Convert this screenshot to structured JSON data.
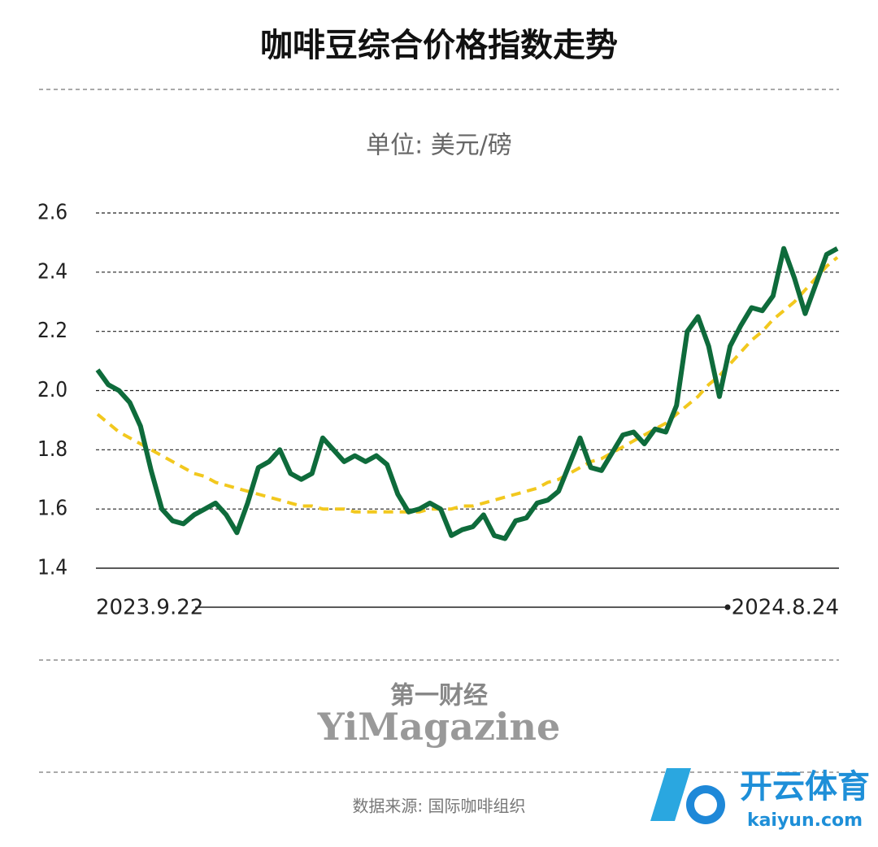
{
  "chart_data": {
    "type": "line",
    "title": "咖啡豆综合价格指数走势",
    "subtitle": "单位: 美元/磅",
    "categories": [
      "2023.9.22",
      null,
      null,
      null,
      null,
      null,
      null,
      null,
      null,
      null,
      null,
      null,
      null,
      null,
      null,
      null,
      null,
      null,
      null,
      null,
      null,
      null,
      null,
      null,
      null,
      null,
      null,
      null,
      null,
      null,
      null,
      null,
      null,
      null,
      null,
      null,
      null,
      null,
      null,
      null,
      null,
      null,
      null,
      null,
      null,
      null,
      null,
      null,
      null,
      null,
      null,
      null,
      null,
      null,
      null,
      null,
      null,
      null,
      null,
      null,
      null,
      null,
      null,
      null,
      null,
      null,
      null,
      null,
      null,
      "2024.8.24"
    ],
    "series": [
      {
        "color": "#0e6b3b",
        "values": [
          2.07,
          2.02,
          2.0,
          1.96,
          1.88,
          1.73,
          1.6,
          1.56,
          1.55,
          1.58,
          1.6,
          1.62,
          1.58,
          1.52,
          1.62,
          1.74,
          1.76,
          1.8,
          1.72,
          1.7,
          1.72,
          1.84,
          1.8,
          1.76,
          1.78,
          1.76,
          1.78,
          1.75,
          1.65,
          1.59,
          1.6,
          1.62,
          1.6,
          1.51,
          1.53,
          1.54,
          1.58,
          1.51,
          1.5,
          1.56,
          1.57,
          1.62,
          1.63,
          1.66,
          1.75,
          1.84,
          1.74,
          1.73,
          1.79,
          1.85,
          1.86,
          1.82,
          1.87,
          1.86,
          1.95,
          2.2,
          2.25,
          2.15,
          1.98,
          2.15,
          2.22,
          2.28,
          2.27,
          2.32,
          2.48,
          2.38,
          2.26,
          2.36,
          2.46,
          2.48
        ]
      },
      {
        "color": "#f2c81e",
        "dashed": true,
        "values": [
          1.92,
          1.89,
          1.86,
          1.84,
          1.82,
          1.8,
          1.78,
          1.76,
          1.74,
          1.72,
          1.71,
          1.69,
          1.68,
          1.67,
          1.66,
          1.65,
          1.64,
          1.63,
          1.62,
          1.61,
          1.61,
          1.6,
          1.6,
          1.6,
          1.59,
          1.59,
          1.59,
          1.59,
          1.59,
          1.59,
          1.59,
          1.6,
          1.6,
          1.6,
          1.61,
          1.61,
          1.62,
          1.63,
          1.64,
          1.65,
          1.66,
          1.67,
          1.69,
          1.7,
          1.72,
          1.74,
          1.76,
          1.77,
          1.79,
          1.81,
          1.83,
          1.85,
          1.87,
          1.89,
          1.92,
          1.95,
          1.98,
          2.02,
          2.05,
          2.09,
          2.13,
          2.17,
          2.2,
          2.24,
          2.27,
          2.3,
          2.34,
          2.38,
          2.42,
          2.45
        ]
      }
    ],
    "ylim": [
      1.4,
      2.6
    ],
    "yticks": [
      1.4,
      1.6,
      1.8,
      {
        "value": 2,
        "label": "2.0"
      },
      2.2,
      2.4,
      2.6
    ],
    "grid": true,
    "logo": {
      "cn": "第一财经",
      "en": "YiMagazine"
    },
    "source": "数据来源: 国际咖啡组织",
    "watermark": {
      "cn": "开云体育",
      "en": "kaiyun.com"
    }
  }
}
